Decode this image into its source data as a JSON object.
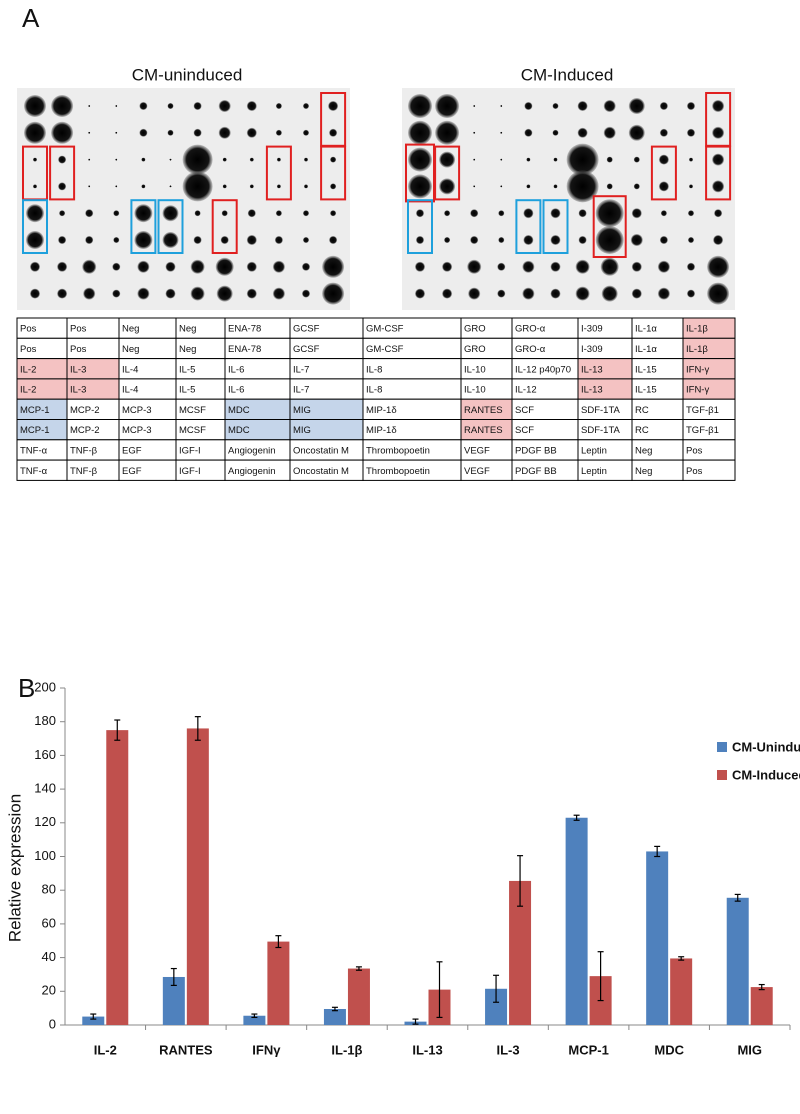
{
  "panel_a": {
    "label": "A",
    "blots": [
      {
        "title": "CM-uninduced"
      },
      {
        "title": "CM-Induced"
      }
    ],
    "table": {
      "rows": [
        [
          "Pos",
          "Pos",
          "Neg",
          "Neg",
          "ENA-78",
          "GCSF",
          "GM-CSF",
          "GRO",
          "GRO-α",
          "I-309",
          "IL-1α",
          "IL-1β"
        ],
        [
          "Pos",
          "Pos",
          "Neg",
          "Neg",
          "ENA-78",
          "GCSF",
          "GM-CSF",
          "GRO",
          "GRO-α",
          "I-309",
          "IL-1α",
          "IL-1β"
        ],
        [
          "IL-2",
          "IL-3",
          "IL-4",
          "IL-5",
          "IL-6",
          "IL-7",
          "IL-8",
          "IL-10",
          "IL-12 p40p70",
          "IL-13",
          "IL-15",
          "IFN-γ"
        ],
        [
          "IL-2",
          "IL-3",
          "IL-4",
          "IL-5",
          "IL-6",
          "IL-7",
          "IL-8",
          "IL-10",
          "IL-12",
          "IL-13",
          "IL-15",
          "IFN-γ"
        ],
        [
          "MCP-1",
          "MCP-2",
          "MCP-3",
          "MCSF",
          "MDC",
          "MIG",
          "MIP-1δ",
          "RANTES",
          "SCF",
          "SDF-1TA",
          "RC",
          "TGF-β1"
        ],
        [
          "MCP-1",
          "MCP-2",
          "MCP-3",
          "MCSF",
          "MDC",
          "MIG",
          "MIP-1δ",
          "RANTES",
          "SCF",
          "SDF-1TA",
          "RC",
          "TGF-β1"
        ],
        [
          "TNF-α",
          "TNF-β",
          "EGF",
          "IGF-I",
          "Angiogenin",
          "Oncostatin M",
          "Thrombopoetin",
          "VEGF",
          "PDGF BB",
          "Leptin",
          "Neg",
          "Pos"
        ],
        [
          "TNF-α",
          "TNF-β",
          "EGF",
          "IGF-I",
          "Angiogenin",
          "Oncostatin M",
          "Thrombopoetin",
          "VEGF",
          "PDGF BB",
          "Leptin",
          "Neg",
          "Pos"
        ]
      ]
    }
  },
  "panel_b": {
    "label": "B"
  },
  "chart_data": {
    "type": "bar",
    "ylabel": "Relative expression",
    "categories": [
      "IL-2",
      "RANTES",
      "IFNγ",
      "IL-1β",
      "IL-13",
      "IL-3",
      "MCP-1",
      "MDC",
      "MIG"
    ],
    "series": [
      {
        "name": "CM-Uninduced",
        "color": "#4f81bd",
        "values": [
          5,
          28.5,
          5.5,
          9.5,
          2,
          21.5,
          123,
          103,
          75.5
        ],
        "errors": [
          1.5,
          5,
          1,
          1,
          1.5,
          8,
          1.5,
          3,
          2
        ]
      },
      {
        "name": "CM-Induced",
        "color": "#c0504d",
        "values": [
          175,
          176,
          49.5,
          33.5,
          21,
          85.5,
          29,
          39.5,
          22.5
        ],
        "errors": [
          6,
          7,
          3.5,
          1,
          16.5,
          15,
          14.5,
          1,
          1.5
        ]
      }
    ],
    "ylim": [
      0,
      200
    ],
    "yticks": [
      0,
      20,
      40,
      60,
      80,
      100,
      120,
      140,
      160,
      180,
      200
    ],
    "grid": false,
    "legend": "right"
  }
}
